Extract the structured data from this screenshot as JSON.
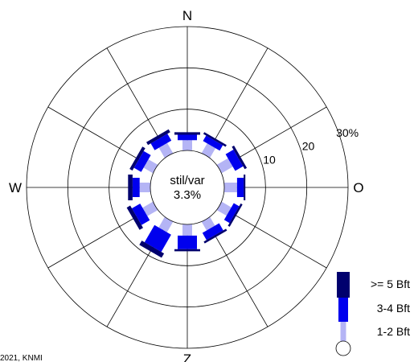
{
  "chart_data": {
    "type": "wind-rose",
    "directions": [
      "N",
      "NNO",
      "ONO",
      "O",
      "OZO",
      "ZZO",
      "Z",
      "ZZW",
      "WZW",
      "W",
      "WNW",
      "NNW"
    ],
    "direction_angles_deg": [
      0,
      30,
      60,
      90,
      120,
      150,
      180,
      210,
      240,
      270,
      300,
      330
    ],
    "compass_labels": {
      "north": "N",
      "east": "O",
      "south": "Z",
      "west": "W"
    },
    "rings": [
      10,
      20,
      30
    ],
    "ring_labels": [
      "10",
      "20",
      "30%"
    ],
    "rmax": 30,
    "calm": {
      "label": "stil/var",
      "value": "3.3%"
    },
    "series": [
      {
        "name": "1-2 Bft",
        "color": "#b4b4f5",
        "values": [
          2.5,
          2.7,
          3.1,
          3.1,
          2.7,
          2.4,
          2.7,
          2.9,
          2.9,
          2.6,
          2.6,
          2.8
        ]
      },
      {
        "name": "3-4 Bft",
        "color": "#0000ee",
        "values": [
          1.3,
          1.5,
          2.2,
          1.6,
          1.5,
          2.0,
          3.3,
          4.8,
          2.3,
          1.7,
          2.0,
          1.9
        ]
      },
      {
        "name": ">= 5 Bft",
        "color": "#00006e",
        "values": [
          0.6,
          0.5,
          0.6,
          0.4,
          0.5,
          0.5,
          0.5,
          1.2,
          1.0,
          1.1,
          0.8,
          0.8
        ]
      }
    ],
    "legend": [
      {
        "label": ">= 5 Bft",
        "color": "#00006e"
      },
      {
        "label": "3-4 Bft",
        "color": "#0000ee"
      },
      {
        "label": "1-2 Bft",
        "color": "#b4b4f5"
      }
    ],
    "legend_position": "bottom-right",
    "credit": "2021, KNMI"
  }
}
